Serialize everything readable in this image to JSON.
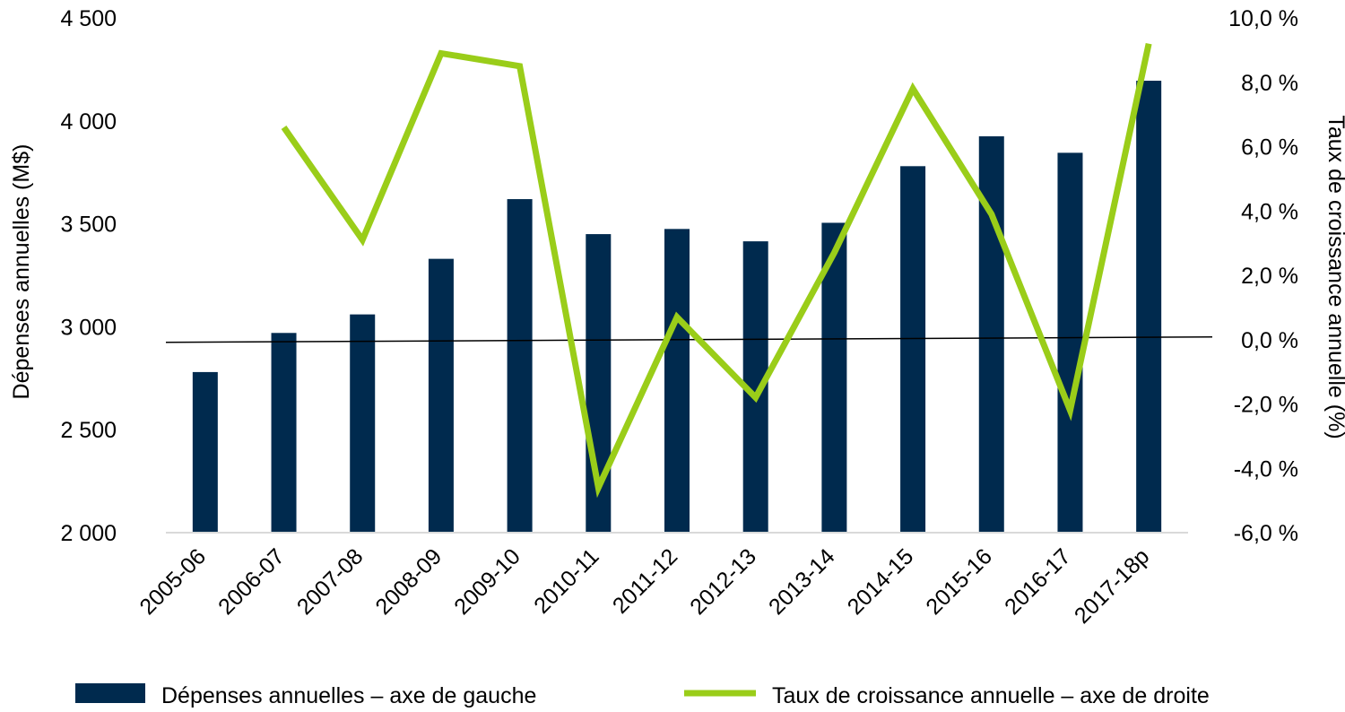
{
  "chart_data": {
    "type": "bar",
    "categories": [
      "2005-06",
      "2006-07",
      "2007-08",
      "2008-09",
      "2009-10",
      "2010-11",
      "2011-12",
      "2012-13",
      "2013-14",
      "2014-15",
      "2015-16",
      "2016-17",
      "2017-18p"
    ],
    "series": [
      {
        "name": "Dépenses annuelles – axe de gauche",
        "type": "bar",
        "axis": "left",
        "color": "#002a4e",
        "values": [
          2780,
          2970,
          3060,
          3330,
          3620,
          3450,
          3475,
          3415,
          3505,
          3780,
          3925,
          3845,
          4195
        ]
      },
      {
        "name": "Taux de croissance annuelle – axe de droite",
        "type": "line",
        "axis": "right",
        "color": "#9acd19",
        "values": [
          null,
          6.6,
          3.1,
          8.9,
          8.5,
          -4.6,
          0.7,
          -1.8,
          2.7,
          7.8,
          3.9,
          -2.2,
          9.2
        ]
      }
    ],
    "y_left": {
      "label": "Dépenses annuelles (M$)",
      "range": [
        2000,
        4500
      ],
      "ticks": [
        2000,
        2500,
        3000,
        3500,
        4000,
        4500
      ],
      "tick_labels": [
        "2 000",
        "2 500",
        "3 000",
        "3 500",
        "4 000",
        "4 500"
      ]
    },
    "y_right": {
      "label": "Taux de croissance annuelle (%)",
      "range": [
        -6,
        10
      ],
      "ticks": [
        -6,
        -4,
        -2,
        0,
        2,
        4,
        6,
        8,
        10
      ],
      "tick_labels": [
        "-6,0 %",
        "-4,0 %",
        "-2,0 %",
        "0,0 %",
        "2,0 %",
        "4,0 %",
        "6,0 %",
        "8,0 %",
        "10,0 %"
      ]
    },
    "grid": false,
    "legend_position": "bottom"
  }
}
